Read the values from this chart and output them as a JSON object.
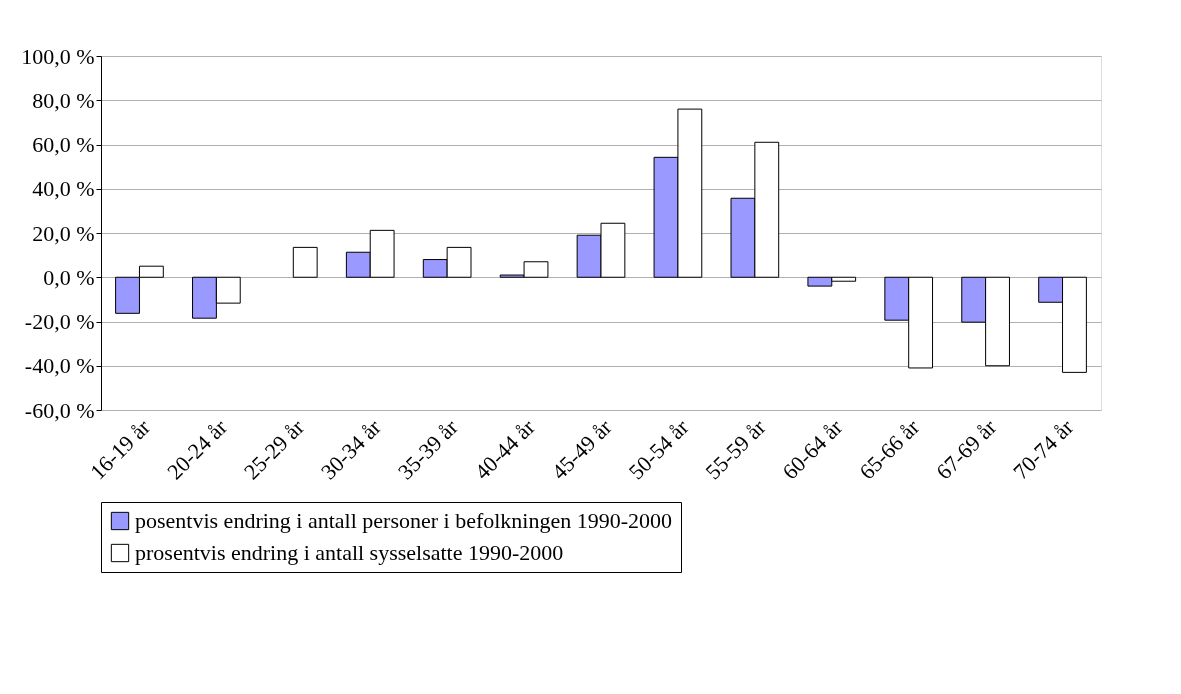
{
  "chart_data": {
    "type": "bar",
    "categories": [
      "16-19 år",
      "20-24 år",
      "25-29 år",
      "30-34 år",
      "35-39 år",
      "40-44 år",
      "45-49 år",
      "50-54 år",
      "55-59 år",
      "60-64 år",
      "65-66 år",
      "67-69 år",
      "70-74 år"
    ],
    "series": [
      {
        "name": "posentvis endring i antall personer i befolkningen 1990-2000",
        "color": "#9999ff",
        "values": [
          -16.3,
          -18.5,
          null,
          11.3,
          8,
          1,
          19,
          54.2,
          35.7,
          -4,
          -19.4,
          -20.3,
          -11.3
        ]
      },
      {
        "name": "prosentvis endring i antall sysselsatte 1990-2000",
        "color": "#ffffff",
        "values": [
          5,
          -11.7,
          13.5,
          21.2,
          13.5,
          7,
          24.4,
          76,
          61,
          -1.8,
          -41,
          -40,
          -43
        ]
      }
    ],
    "ylim": [
      -60,
      100
    ],
    "yticks": [
      {
        "value": -60,
        "label": "-60,0 %"
      },
      {
        "value": -40,
        "label": "-40,0 %"
      },
      {
        "value": -20,
        "label": "-20,0 %"
      },
      {
        "value": 0,
        "label": "0,0 %"
      },
      {
        "value": 20,
        "label": "20,0 %"
      },
      {
        "value": 40,
        "label": "40,0 %"
      },
      {
        "value": 60,
        "label": "60,0 %"
      },
      {
        "value": 80,
        "label": "80,0 %"
      },
      {
        "value": 100,
        "label": "100,0 %"
      }
    ],
    "grid": "y",
    "legend": "bottom"
  }
}
